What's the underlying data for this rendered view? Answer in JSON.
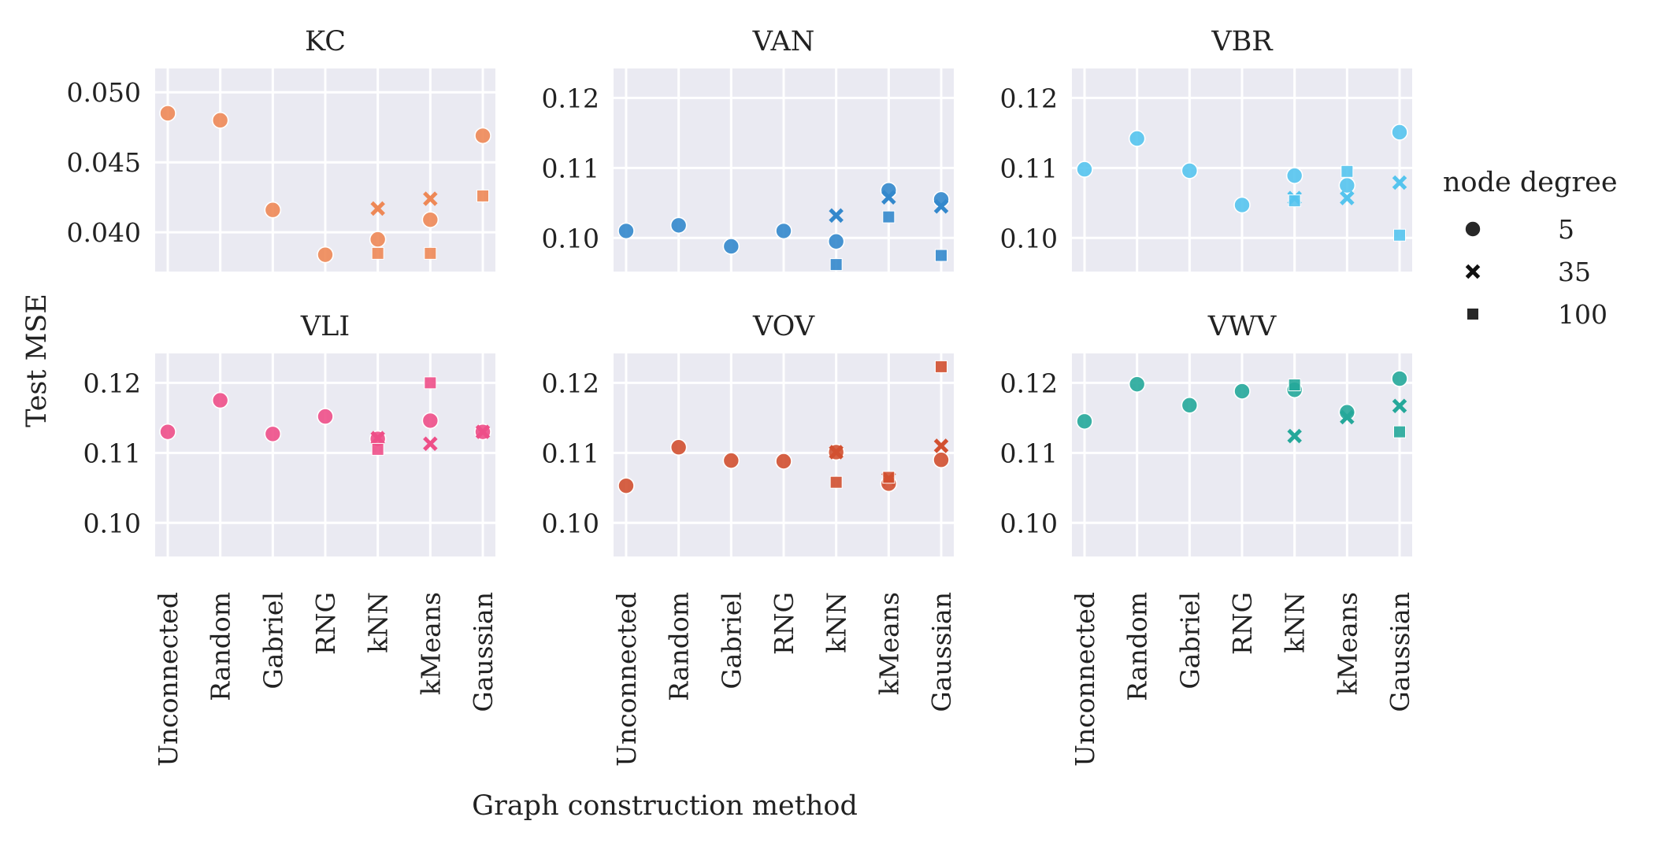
{
  "figure": {
    "ylabel": "Test MSE",
    "xlabel": "Graph construction method",
    "legend": {
      "title": "node degree",
      "placement": "right",
      "entries": [
        {
          "label": "5",
          "marker": "circle"
        },
        {
          "label": "35",
          "marker": "x"
        },
        {
          "label": "100",
          "marker": "square"
        }
      ]
    }
  },
  "chart_data": [
    {
      "type": "scatter",
      "title": "KC",
      "color": "#ee8856",
      "categories": [
        "Unconnected",
        "Random",
        "Gabriel",
        "RNG",
        "kNN",
        "kMeans",
        "Gaussian"
      ],
      "ylim": [
        0.0372,
        0.0517
      ],
      "yticks": [
        0.04,
        0.045,
        0.05
      ],
      "ytick_labels": [
        "0.040",
        "0.045",
        "0.050"
      ],
      "grid": true,
      "series": [
        {
          "name": "5",
          "marker": "circle",
          "values": [
            0.0485,
            0.048,
            0.0416,
            0.0384,
            0.0395,
            0.0409,
            0.0469
          ]
        },
        {
          "name": "35",
          "marker": "x",
          "values": [
            null,
            null,
            null,
            null,
            0.0417,
            0.0424,
            null
          ]
        },
        {
          "name": "100",
          "marker": "square",
          "values": [
            null,
            null,
            null,
            null,
            0.0385,
            0.0385,
            0.0426
          ]
        }
      ]
    },
    {
      "type": "scatter",
      "title": "VAN",
      "color": "#3388cc",
      "categories": [
        "Unconnected",
        "Random",
        "Gabriel",
        "RNG",
        "kNN",
        "kMeans",
        "Gaussian"
      ],
      "ylim": [
        0.0952,
        0.1242
      ],
      "yticks": [
        0.1,
        0.11,
        0.12
      ],
      "ytick_labels": [
        "0.10",
        "0.11",
        "0.12"
      ],
      "grid": true,
      "series": [
        {
          "name": "5",
          "marker": "circle",
          "values": [
            0.101,
            0.1018,
            0.0988,
            0.101,
            0.0995,
            0.1068,
            0.1055
          ]
        },
        {
          "name": "35",
          "marker": "x",
          "values": [
            null,
            null,
            null,
            null,
            0.1032,
            0.1058,
            0.1045
          ]
        },
        {
          "name": "100",
          "marker": "square",
          "values": [
            null,
            null,
            null,
            null,
            0.0962,
            0.103,
            0.0975
          ]
        }
      ]
    },
    {
      "type": "scatter",
      "title": "VBR",
      "color": "#55c4ee",
      "categories": [
        "Unconnected",
        "Random",
        "Gabriel",
        "RNG",
        "kNN",
        "kMeans",
        "Gaussian"
      ],
      "ylim": [
        0.0952,
        0.1242
      ],
      "yticks": [
        0.1,
        0.11,
        0.12
      ],
      "ytick_labels": [
        "0.10",
        "0.11",
        "0.12"
      ],
      "grid": true,
      "series": [
        {
          "name": "5",
          "marker": "circle",
          "values": [
            0.1098,
            0.1142,
            0.1096,
            0.1047,
            0.1089,
            0.1075,
            0.1151
          ]
        },
        {
          "name": "35",
          "marker": "x",
          "values": [
            null,
            null,
            null,
            null,
            0.1057,
            0.1057,
            0.1079
          ]
        },
        {
          "name": "100",
          "marker": "square",
          "values": [
            null,
            null,
            null,
            null,
            0.1053,
            0.1095,
            0.1004
          ]
        }
      ]
    },
    {
      "type": "scatter",
      "title": "VLI",
      "color": "#ee4f88",
      "categories": [
        "Unconnected",
        "Random",
        "Gabriel",
        "RNG",
        "kNN",
        "kMeans",
        "Gaussian"
      ],
      "ylim": [
        0.0952,
        0.1242
      ],
      "yticks": [
        0.1,
        0.11,
        0.12
      ],
      "ytick_labels": [
        "0.10",
        "0.11",
        "0.12"
      ],
      "grid": true,
      "series": [
        {
          "name": "5",
          "marker": "circle",
          "values": [
            0.113,
            0.1175,
            0.1127,
            0.1152,
            0.112,
            0.1146,
            0.113
          ]
        },
        {
          "name": "35",
          "marker": "x",
          "values": [
            null,
            null,
            null,
            null,
            0.1121,
            0.1113,
            0.113
          ]
        },
        {
          "name": "100",
          "marker": "square",
          "values": [
            null,
            null,
            null,
            null,
            0.1105,
            0.12,
            null
          ]
        }
      ]
    },
    {
      "type": "scatter",
      "title": "VOV",
      "color": "#d25030",
      "categories": [
        "Unconnected",
        "Random",
        "Gabriel",
        "RNG",
        "kNN",
        "kMeans",
        "Gaussian"
      ],
      "ylim": [
        0.0952,
        0.1242
      ],
      "yticks": [
        0.1,
        0.11,
        0.12
      ],
      "ytick_labels": [
        "0.10",
        "0.11",
        "0.12"
      ],
      "grid": true,
      "series": [
        {
          "name": "5",
          "marker": "circle",
          "values": [
            0.1053,
            0.1108,
            0.1089,
            0.1088,
            0.1101,
            0.1056,
            0.109
          ]
        },
        {
          "name": "35",
          "marker": "x",
          "values": [
            null,
            null,
            null,
            null,
            0.1101,
            0.1063,
            0.111
          ]
        },
        {
          "name": "100",
          "marker": "square",
          "values": [
            null,
            null,
            null,
            null,
            0.1058,
            0.1065,
            0.1223
          ]
        }
      ]
    },
    {
      "type": "scatter",
      "title": "VWV",
      "color": "#25a89a",
      "categories": [
        "Unconnected",
        "Random",
        "Gabriel",
        "RNG",
        "kNN",
        "kMeans",
        "Gaussian"
      ],
      "ylim": [
        0.0952,
        0.1242
      ],
      "yticks": [
        0.1,
        0.11,
        0.12
      ],
      "ytick_labels": [
        "0.10",
        "0.11",
        "0.12"
      ],
      "grid": true,
      "series": [
        {
          "name": "5",
          "marker": "circle",
          "values": [
            0.1145,
            0.1198,
            0.1168,
            0.1188,
            0.119,
            0.1158,
            0.1206
          ]
        },
        {
          "name": "35",
          "marker": "x",
          "values": [
            null,
            null,
            null,
            null,
            0.1124,
            0.1151,
            0.1167
          ]
        },
        {
          "name": "100",
          "marker": "square",
          "values": [
            null,
            null,
            null,
            null,
            0.1197,
            null,
            0.113
          ]
        }
      ]
    }
  ]
}
